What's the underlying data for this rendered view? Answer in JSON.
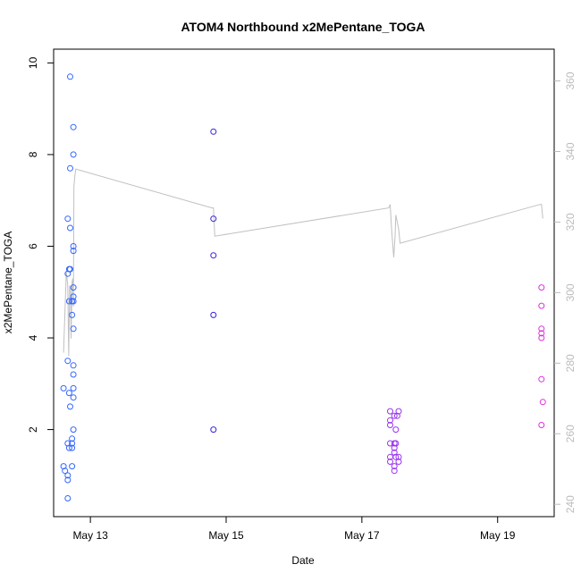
{
  "chart_data": {
    "type": "scatter",
    "title": "ATOM4 Northbound x2MePentane_TOGA",
    "xlabel": "Date",
    "ylabel": "x2MePentane_TOGA",
    "xlim": [
      "2018-05-12 11:00",
      "2018-05-19 20:00"
    ],
    "ylim": [
      0.1,
      10.3
    ],
    "y2lim": [
      236.5,
      369
    ],
    "x_ticks": [
      {
        "label": "May 13",
        "date": "2018-05-13 00:00"
      },
      {
        "label": "May 15",
        "date": "2018-05-15 00:00"
      },
      {
        "label": "May 17",
        "date": "2018-05-17 00:00"
      },
      {
        "label": "May 19",
        "date": "2018-05-19 00:00"
      }
    ],
    "y_ticks": [
      2,
      4,
      6,
      8,
      10
    ],
    "y2_ticks": [
      240,
      260,
      280,
      300,
      320,
      340,
      360
    ],
    "grid": false,
    "series": [
      {
        "color": "#3366ff",
        "points": [
          [
            "2018-05-12 14:30",
            2.9
          ],
          [
            "2018-05-12 14:30",
            1.2
          ],
          [
            "2018-05-12 15:00",
            1.1
          ],
          [
            "2018-05-12 16:00",
            0.5
          ],
          [
            "2018-05-12 16:00",
            0.9
          ],
          [
            "2018-05-12 16:00",
            1.0
          ],
          [
            "2018-05-12 16:00",
            6.6
          ],
          [
            "2018-05-12 16:00",
            3.5
          ],
          [
            "2018-05-12 16:00",
            5.4
          ],
          [
            "2018-05-12 16:00",
            1.7
          ],
          [
            "2018-05-12 16:30",
            5.5
          ],
          [
            "2018-05-12 16:30",
            4.8
          ],
          [
            "2018-05-12 16:30",
            2.8
          ],
          [
            "2018-05-12 16:30",
            1.6
          ],
          [
            "2018-05-12 16:50",
            9.7
          ],
          [
            "2018-05-12 16:50",
            7.7
          ],
          [
            "2018-05-12 16:50",
            6.4
          ],
          [
            "2018-05-12 16:50",
            5.5
          ],
          [
            "2018-05-12 16:50",
            2.5
          ],
          [
            "2018-05-12 17:30",
            1.6
          ],
          [
            "2018-05-12 17:30",
            1.7
          ],
          [
            "2018-05-12 17:30",
            1.8
          ],
          [
            "2018-05-12 17:30",
            1.2
          ],
          [
            "2018-05-12 17:30",
            4.8
          ],
          [
            "2018-05-12 17:30",
            4.5
          ],
          [
            "2018-05-12 18:00",
            8.6
          ],
          [
            "2018-05-12 18:00",
            8.0
          ],
          [
            "2018-05-12 18:00",
            6.0
          ],
          [
            "2018-05-12 18:00",
            5.9
          ],
          [
            "2018-05-12 18:00",
            5.1
          ],
          [
            "2018-05-12 18:00",
            4.9
          ],
          [
            "2018-05-12 18:00",
            4.8
          ],
          [
            "2018-05-12 18:00",
            4.2
          ],
          [
            "2018-05-12 18:00",
            3.4
          ],
          [
            "2018-05-12 18:00",
            3.2
          ],
          [
            "2018-05-12 18:00",
            2.9
          ],
          [
            "2018-05-12 18:00",
            2.7
          ],
          [
            "2018-05-12 18:00",
            2.0
          ]
        ]
      },
      {
        "color": "#3322dd",
        "points": [
          [
            "2018-05-14 19:30",
            8.5
          ],
          [
            "2018-05-14 19:30",
            6.6
          ],
          [
            "2018-05-14 19:30",
            5.8
          ],
          [
            "2018-05-14 19:30",
            4.5
          ],
          [
            "2018-05-14 19:30",
            2.0
          ]
        ]
      },
      {
        "color": "#9933ee",
        "points": [
          [
            "2018-05-17 10:00",
            2.4
          ],
          [
            "2018-05-17 10:00",
            2.2
          ],
          [
            "2018-05-17 10:00",
            2.1
          ],
          [
            "2018-05-17 10:00",
            1.7
          ],
          [
            "2018-05-17 10:00",
            1.4
          ],
          [
            "2018-05-17 10:00",
            1.3
          ],
          [
            "2018-05-17 11:30",
            2.3
          ],
          [
            "2018-05-17 11:30",
            1.7
          ],
          [
            "2018-05-17 11:30",
            1.6
          ],
          [
            "2018-05-17 11:30",
            1.5
          ],
          [
            "2018-05-17 11:30",
            1.2
          ],
          [
            "2018-05-17 11:30",
            1.1
          ],
          [
            "2018-05-17 12:00",
            2.0
          ],
          [
            "2018-05-17 12:00",
            1.7
          ],
          [
            "2018-05-17 12:00",
            1.4
          ],
          [
            "2018-05-17 12:30",
            2.3
          ],
          [
            "2018-05-17 13:00",
            2.4
          ],
          [
            "2018-05-17 13:00",
            1.4
          ],
          [
            "2018-05-17 13:00",
            1.3
          ]
        ]
      },
      {
        "color": "#dd33dd",
        "points": [
          [
            "2018-05-19 15:30",
            5.1
          ],
          [
            "2018-05-19 15:30",
            4.7
          ],
          [
            "2018-05-19 15:30",
            4.2
          ],
          [
            "2018-05-19 15:30",
            4.1
          ],
          [
            "2018-05-19 15:30",
            4.0
          ],
          [
            "2018-05-19 15:30",
            3.1
          ],
          [
            "2018-05-19 15:30",
            2.1
          ],
          [
            "2018-05-19 16:00",
            2.6
          ]
        ]
      }
    ],
    "line_series": {
      "axis": "right",
      "color": "#c0c0c0",
      "points": [
        [
          "2018-05-12 14:30",
          283
        ],
        [
          "2018-05-12 15:30",
          306
        ],
        [
          "2018-05-12 16:00",
          302
        ],
        [
          "2018-05-12 16:20",
          282
        ],
        [
          "2018-05-12 16:40",
          302
        ],
        [
          "2018-05-12 17:00",
          300
        ],
        [
          "2018-05-12 17:10",
          287
        ],
        [
          "2018-05-12 17:30",
          303
        ],
        [
          "2018-05-12 17:45",
          304
        ],
        [
          "2018-05-12 18:00",
          296
        ],
        [
          "2018-05-12 18:10",
          330
        ],
        [
          "2018-05-12 18:30",
          333
        ],
        [
          "2018-05-12 18:50",
          335
        ],
        [
          "2018-05-14 19:00",
          324
        ],
        [
          "2018-05-14 19:30",
          324
        ],
        [
          "2018-05-14 20:00",
          316
        ],
        [
          "2018-05-17 09:30",
          324
        ],
        [
          "2018-05-17 10:00",
          325
        ],
        [
          "2018-05-17 10:30",
          318
        ],
        [
          "2018-05-17 11:15",
          310
        ],
        [
          "2018-05-17 11:45",
          316
        ],
        [
          "2018-05-17 12:00",
          322
        ],
        [
          "2018-05-17 12:30",
          320
        ],
        [
          "2018-05-17 13:00",
          318
        ],
        [
          "2018-05-17 13:30",
          314
        ],
        [
          "2018-05-19 15:00",
          325
        ],
        [
          "2018-05-19 15:30",
          325
        ],
        [
          "2018-05-19 16:00",
          321
        ]
      ]
    }
  }
}
